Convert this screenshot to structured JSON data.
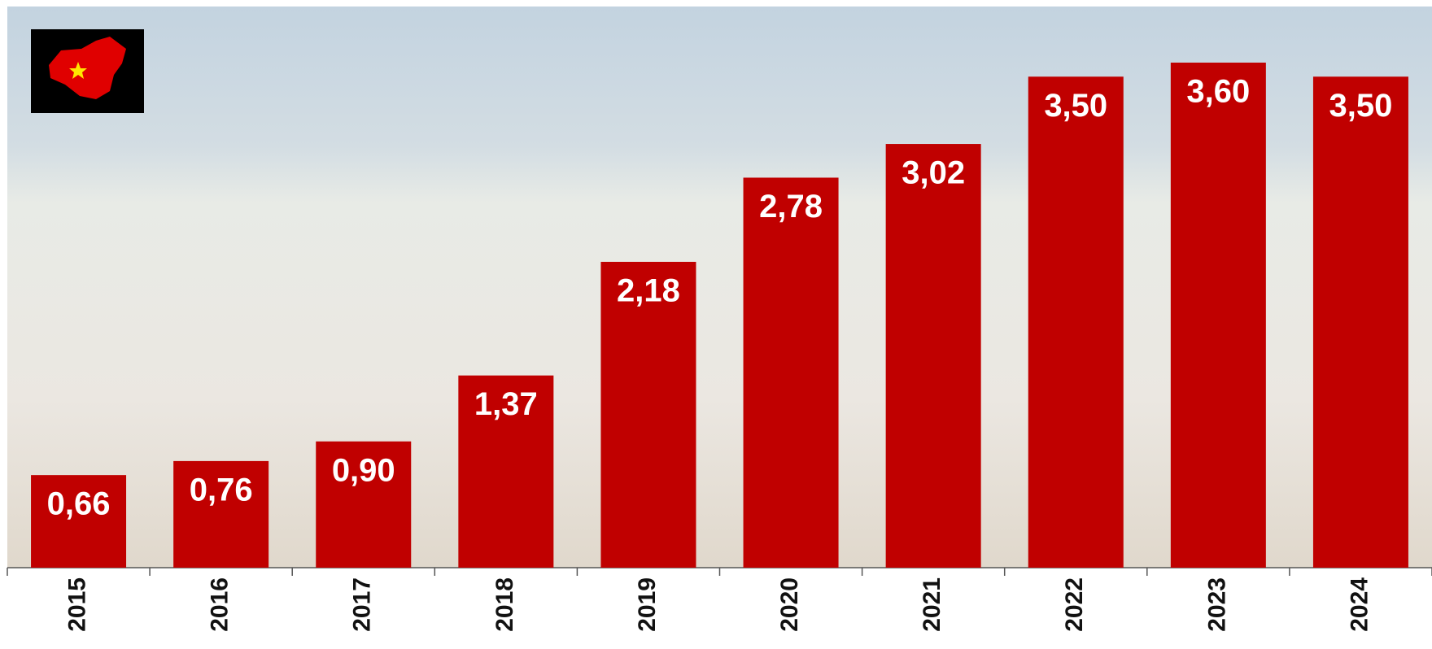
{
  "chart_data": {
    "type": "bar",
    "categories": [
      "2015",
      "2016",
      "2017",
      "2018",
      "2019",
      "2020",
      "2021",
      "2022",
      "2023",
      "2024"
    ],
    "values": [
      0.66,
      0.76,
      0.9,
      1.37,
      2.18,
      2.78,
      3.02,
      3.5,
      3.6,
      3.5
    ],
    "value_labels": [
      "0,66",
      "0,76",
      "0,90",
      "1,37",
      "2,18",
      "2,78",
      "3,02",
      "3,50",
      "3,60",
      "3,50"
    ],
    "color": "#c00000",
    "ylim": [
      0,
      4
    ]
  }
}
